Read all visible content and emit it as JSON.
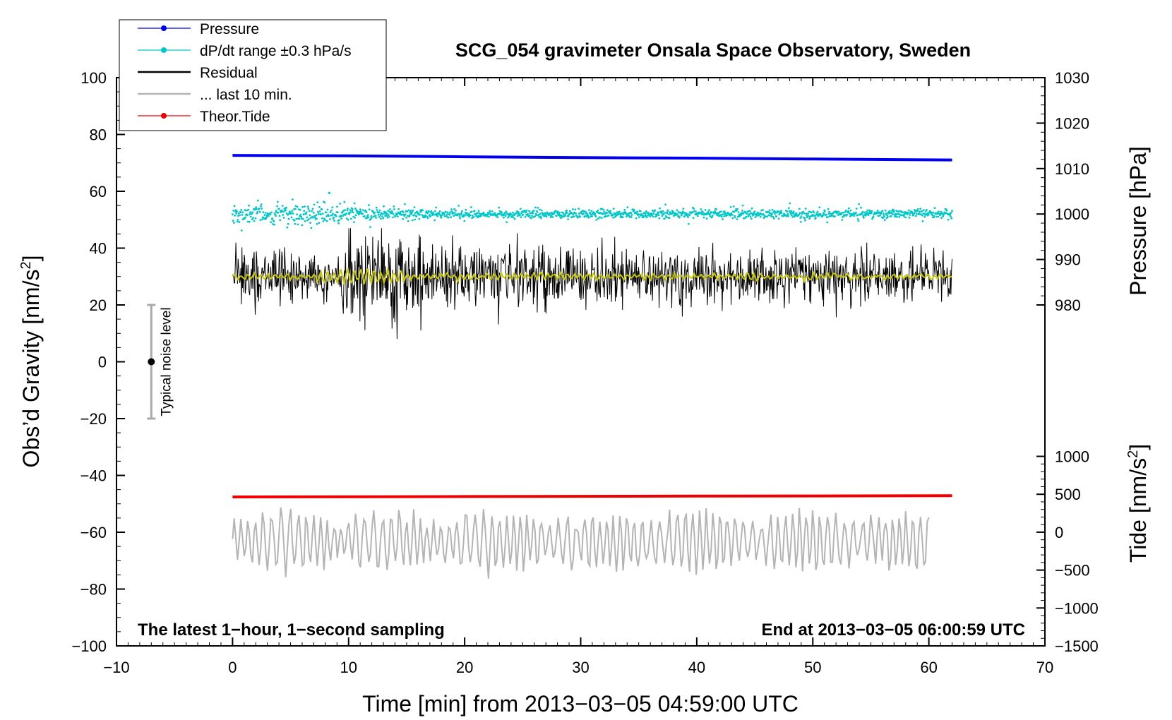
{
  "chart_data": {
    "type": "line",
    "title": "SCG_054 gravimeter Onsala Space Observatory, Sweden",
    "xlabel": "Time [min] from 2013−03−05 04:59:00 UTC",
    "ylabel": "Obs’d Gravity [nm/s",
    "ylabel_sup": "2",
    "ylabel_end": "]",
    "right_pressure_label": "Pressure [hPa]",
    "right_tide_label": "Tide [nm/s",
    "right_tide_sup": "2",
    "right_tide_end": "]",
    "xlim": [
      -10,
      70
    ],
    "ylim": [
      -100,
      100
    ],
    "x_ticks": [
      -10,
      0,
      10,
      20,
      30,
      40,
      50,
      60,
      70
    ],
    "x_tick_labels": [
      "−10",
      "0",
      "10",
      "20",
      "30",
      "40",
      "50",
      "60",
      "70"
    ],
    "y_ticks": [
      -100,
      -80,
      -60,
      -40,
      -20,
      0,
      20,
      40,
      60,
      80,
      100
    ],
    "y_tick_labels": [
      "−100",
      "−80",
      "−60",
      "−40",
      "−20",
      "0",
      "20",
      "40",
      "60",
      "80",
      "100"
    ],
    "pressure_axis": {
      "range": [
        980,
        1030
      ],
      "ticks": [
        980,
        990,
        1000,
        1010,
        1020,
        1030
      ],
      "tick_labels": [
        "980",
        "990",
        "1000",
        "1010",
        "1020",
        "1030"
      ],
      "gravity_equivalent": [
        20,
        100
      ]
    },
    "tide_axis": {
      "range": [
        -1500,
        1000
      ],
      "ticks": [
        -1500,
        -1000,
        -500,
        0,
        500,
        1000
      ],
      "tick_labels": [
        "−1500",
        "−1000",
        "−500",
        "0",
        "500",
        "1000"
      ],
      "gravity_equivalent": [
        -100,
        -33.3
      ]
    },
    "legend": [
      {
        "label": "Pressure",
        "color": "#0000ee",
        "marker": true
      },
      {
        "label": "dP/dt range ±0.3 hPa/s",
        "color": "#00c8c8",
        "marker": true
      },
      {
        "label": "Residual",
        "color": "#000000",
        "marker": false
      },
      {
        "label": "... last 10 min.",
        "color": "#b4b4b4",
        "marker": false
      },
      {
        "label": "Theor.Tide",
        "color": "#ee0000",
        "marker": true
      }
    ],
    "series": [
      {
        "name": "Pressure",
        "color": "#0000ee",
        "axis": "pressure",
        "x": [
          0,
          10,
          20,
          30,
          40,
          50,
          62
        ],
        "values": [
          1012.9,
          1012.8,
          1012.6,
          1012.4,
          1012.3,
          1012.1,
          1011.9
        ]
      },
      {
        "name": "dP/dt",
        "color": "#00c8c8",
        "axis": "pressure",
        "x_range": [
          0,
          62
        ],
        "center": 1000,
        "description_points": [
          [
            0,
            1000
          ],
          [
            5,
            1000
          ],
          [
            10,
            1000
          ],
          [
            62,
            1000
          ]
        ]
      },
      {
        "name": "Residual",
        "color": "#000000",
        "axis": "gravity",
        "x_range": [
          0,
          62
        ],
        "center": 30,
        "min": 8,
        "max": 47
      },
      {
        "name": "Residual smoothed",
        "color": "#c8c800",
        "axis": "gravity",
        "x_range": [
          0,
          62
        ],
        "center": 30
      },
      {
        "name": "Theor.Tide",
        "color": "#ee0000",
        "axis": "tide",
        "x": [
          0,
          10,
          20,
          30,
          40,
          50,
          62
        ],
        "values": [
          465,
          467,
          470,
          473,
          476,
          478,
          481
        ]
      },
      {
        "name": "... last 10 min.",
        "color": "#b4b4b4",
        "axis": "gravity",
        "x_range": [
          0,
          60
        ],
        "center": -63,
        "min": -78,
        "max": -48
      }
    ],
    "noise_bar": {
      "label": "Typical noise level",
      "x": -7,
      "center": 0,
      "low": -20,
      "high": 20
    },
    "annotations": {
      "bottom_left": "The latest 1−hour, 1−second sampling",
      "bottom_right": "End at 2013−03−05 06:00:59 UTC"
    },
    "grid": false
  }
}
